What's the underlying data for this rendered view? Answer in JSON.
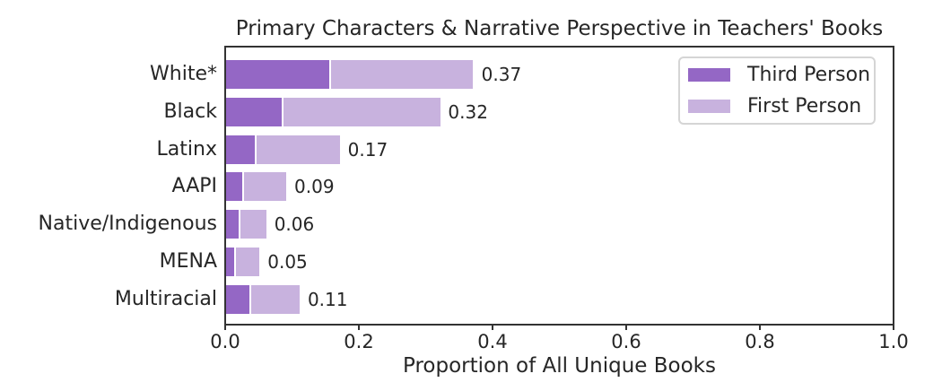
{
  "figure": {
    "title": "Primary Characters & Narrative Perspective in Teachers' Books",
    "xlabel": "Proportion of All Unique Books"
  },
  "colors": {
    "third_person": "#9467c5",
    "first_person": "#c8b2de",
    "spine": "#333333",
    "text": "#262626",
    "background": "#ffffff",
    "legend_border": "#d5d5d5"
  },
  "chart_data": {
    "type": "bar",
    "orientation": "horizontal",
    "stacked": true,
    "grid": false,
    "title": "Primary Characters & Narrative Perspective in Teachers' Books",
    "xlabel": "Proportion of All Unique Books",
    "ylabel": "",
    "categories": [
      "White*",
      "Black",
      "Latinx",
      "AAPI",
      "Native/Indigenous",
      "MENA",
      "Multiracial"
    ],
    "series": [
      {
        "name": "Third Person",
        "color": "#9467c5",
        "values": [
          0.155,
          0.083,
          0.043,
          0.024,
          0.019,
          0.012,
          0.035
        ]
      },
      {
        "name": "First Person",
        "color": "#c8b2de",
        "values": [
          0.215,
          0.237,
          0.127,
          0.066,
          0.041,
          0.038,
          0.075
        ]
      }
    ],
    "total_labels": [
      "0.37",
      "0.32",
      "0.17",
      "0.09",
      "0.06",
      "0.05",
      "0.11"
    ],
    "xlim": [
      0.0,
      1.0
    ],
    "xticks": [
      0.0,
      0.2,
      0.4,
      0.6,
      0.8,
      1.0
    ],
    "xtick_labels": [
      "0.0",
      "0.2",
      "0.4",
      "0.6",
      "0.8",
      "1.0"
    ],
    "legend": {
      "position": "upper right",
      "entries": [
        "Third Person",
        "First Person"
      ]
    }
  }
}
